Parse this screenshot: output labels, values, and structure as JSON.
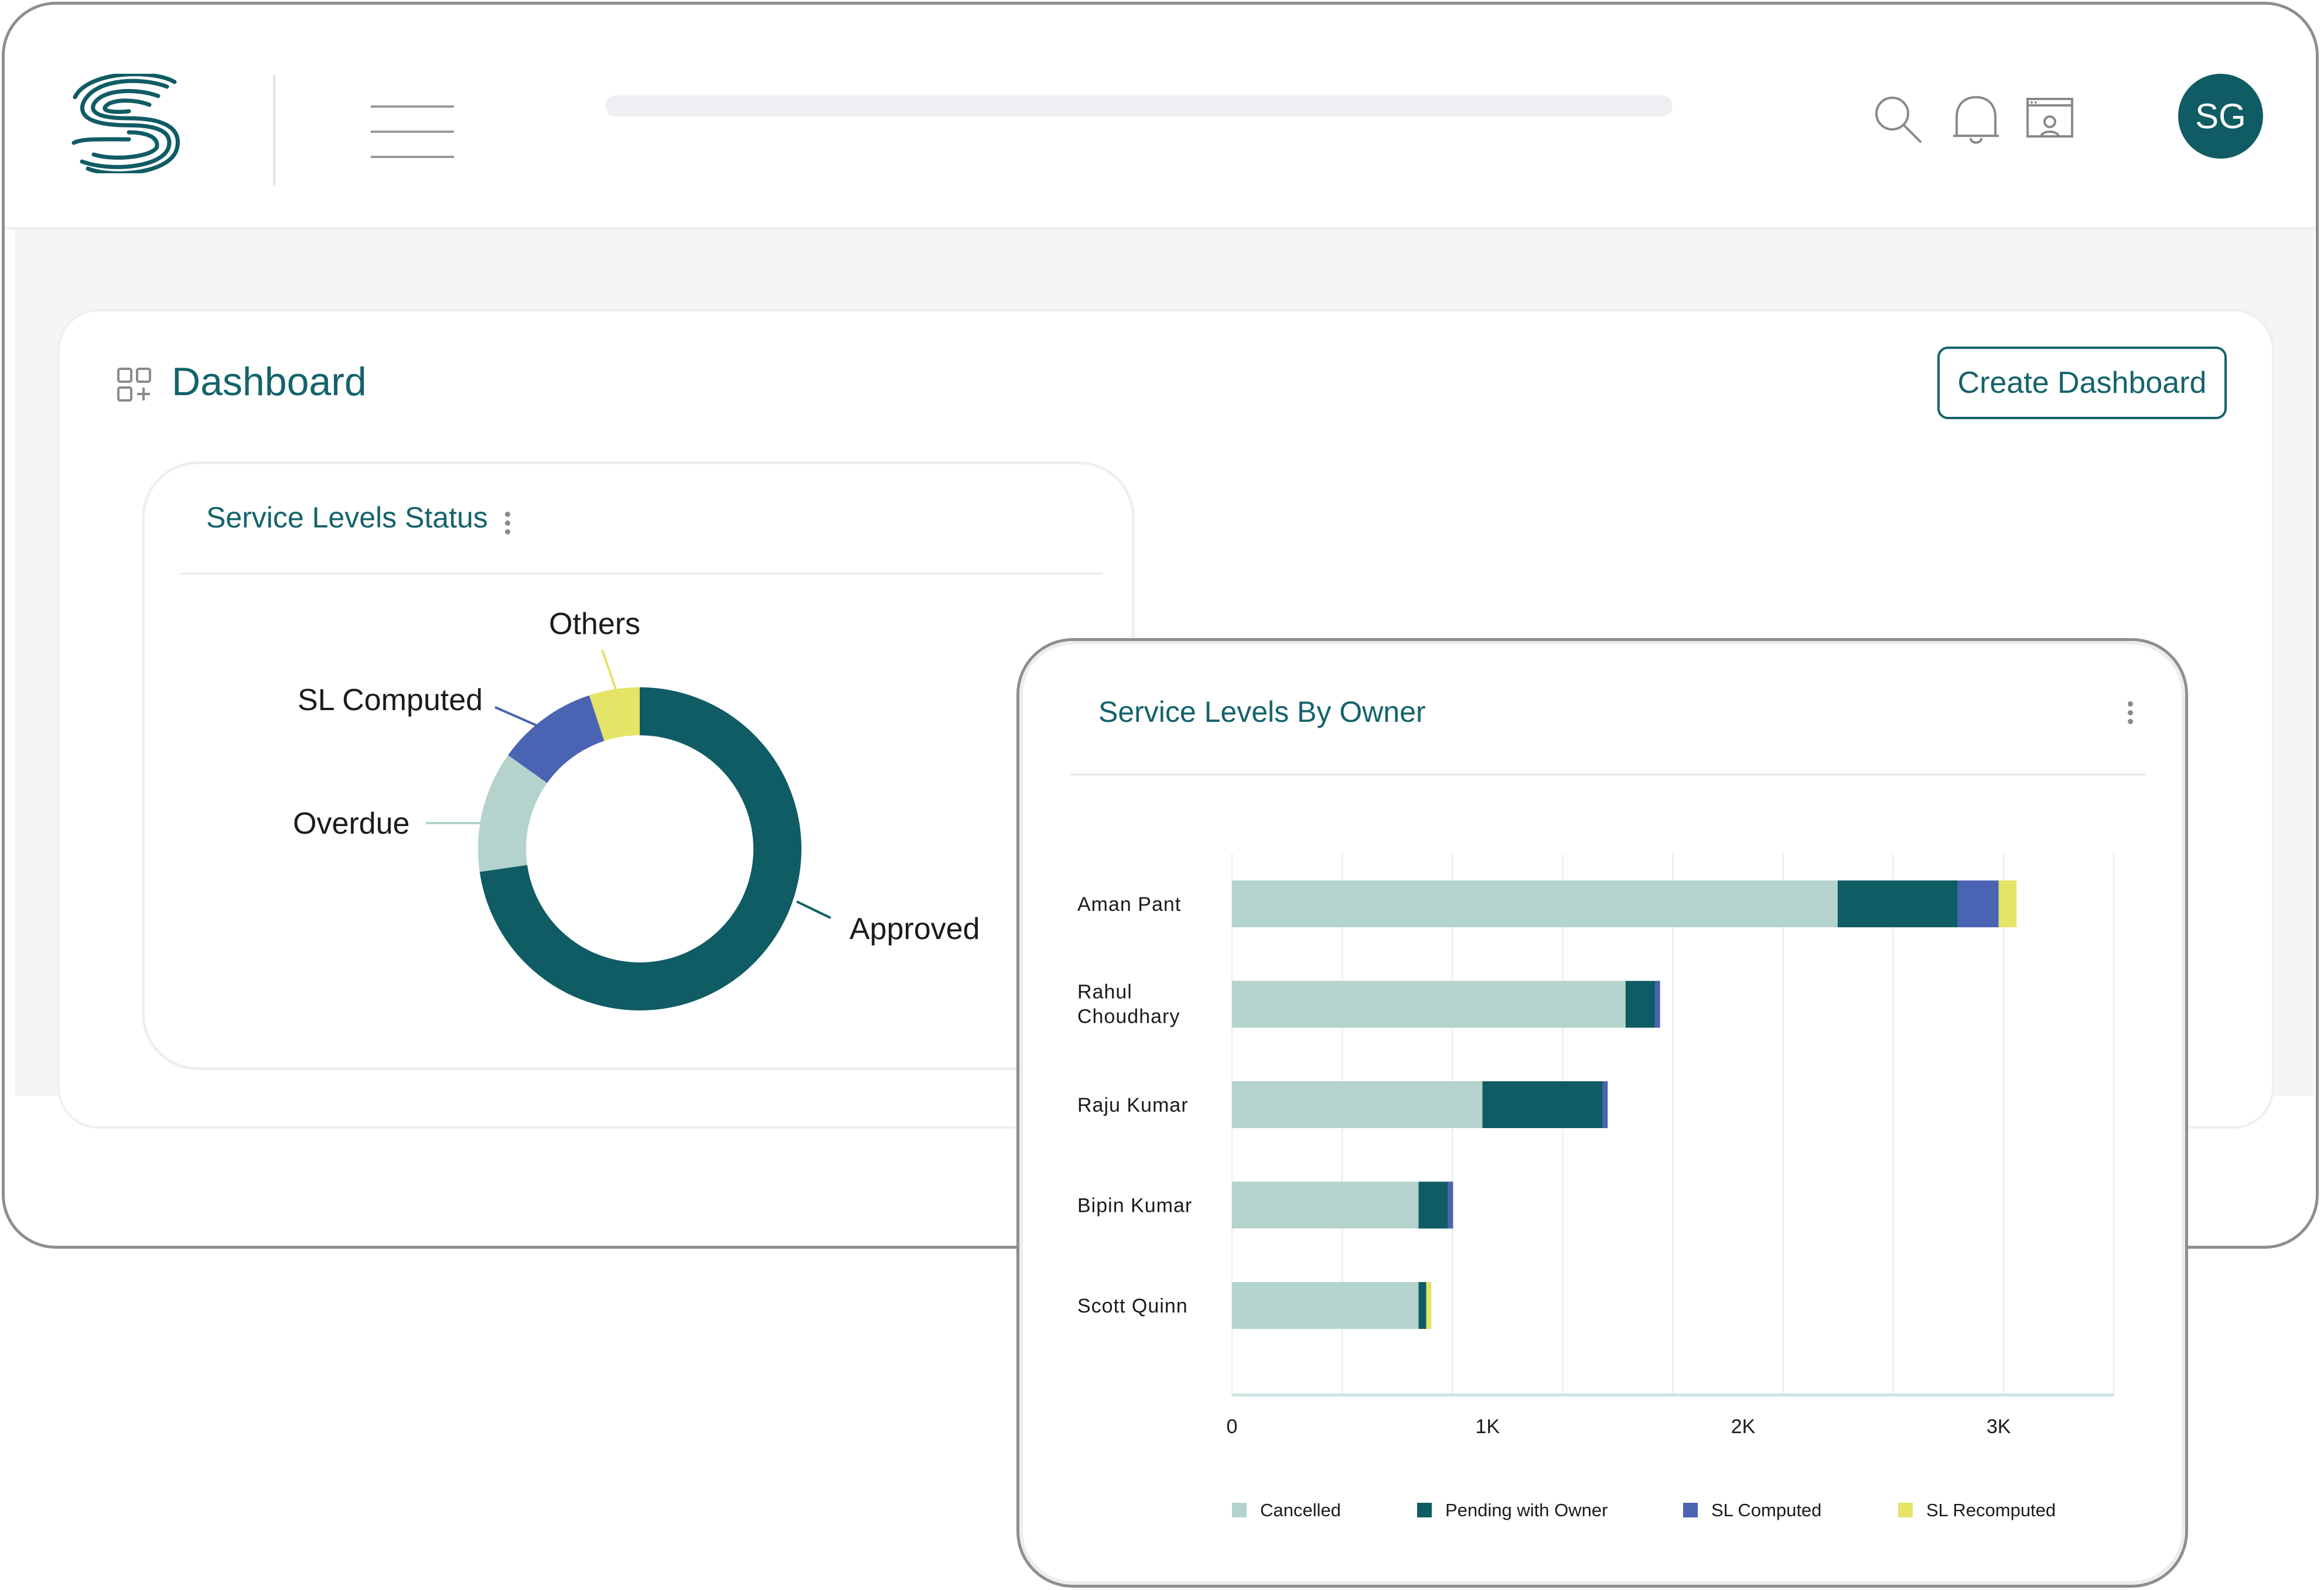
{
  "header": {
    "avatar_initials": "SG",
    "brand_color": "#0f5c64",
    "icons": [
      "logo-icon",
      "hamburger-menu-icon",
      "search-icon",
      "bell-icon",
      "profile-window-icon"
    ]
  },
  "page": {
    "title": "Dashboard",
    "create_button_label": "Create Dashboard"
  },
  "status_card": {
    "title": "Service Levels Status"
  },
  "owner_card": {
    "title": "Service Levels By Owner"
  },
  "chart_data": [
    {
      "type": "pie",
      "title": "Service Levels Status",
      "donut": true,
      "labels": [
        "Approved",
        "Overdue",
        "SL Computed",
        "Others"
      ],
      "values": [
        72,
        12,
        10,
        5
      ],
      "colors": [
        "#0f5c64",
        "#b3d3cc",
        "#4a63b3",
        "#e4e467"
      ]
    },
    {
      "type": "bar",
      "orientation": "horizontal",
      "stacked": true,
      "title": "Service Levels By Owner",
      "categories": [
        "Aman Pant",
        "Rahul Choudhary",
        "Raju Kumar",
        "Bipin Kumar",
        "Scott Quinn"
      ],
      "series": [
        {
          "name": "Cancelled",
          "color": "#b3d3cc",
          "values": [
            2370,
            1540,
            980,
            730,
            730
          ]
        },
        {
          "name": "Pending with Owner",
          "color": "#0f5c64",
          "values": [
            470,
            115,
            470,
            115,
            30
          ]
        },
        {
          "name": "SL Computed",
          "color": "#4a63b3",
          "values": [
            160,
            20,
            20,
            20,
            0
          ]
        },
        {
          "name": "SL Recomputed",
          "color": "#e4e467",
          "values": [
            70,
            0,
            0,
            0,
            20
          ]
        }
      ],
      "xticks": [
        "0",
        "1K",
        "2K",
        "3K"
      ],
      "xlim": [
        0,
        3450
      ],
      "grid": true,
      "legend_position": "bottom"
    }
  ]
}
